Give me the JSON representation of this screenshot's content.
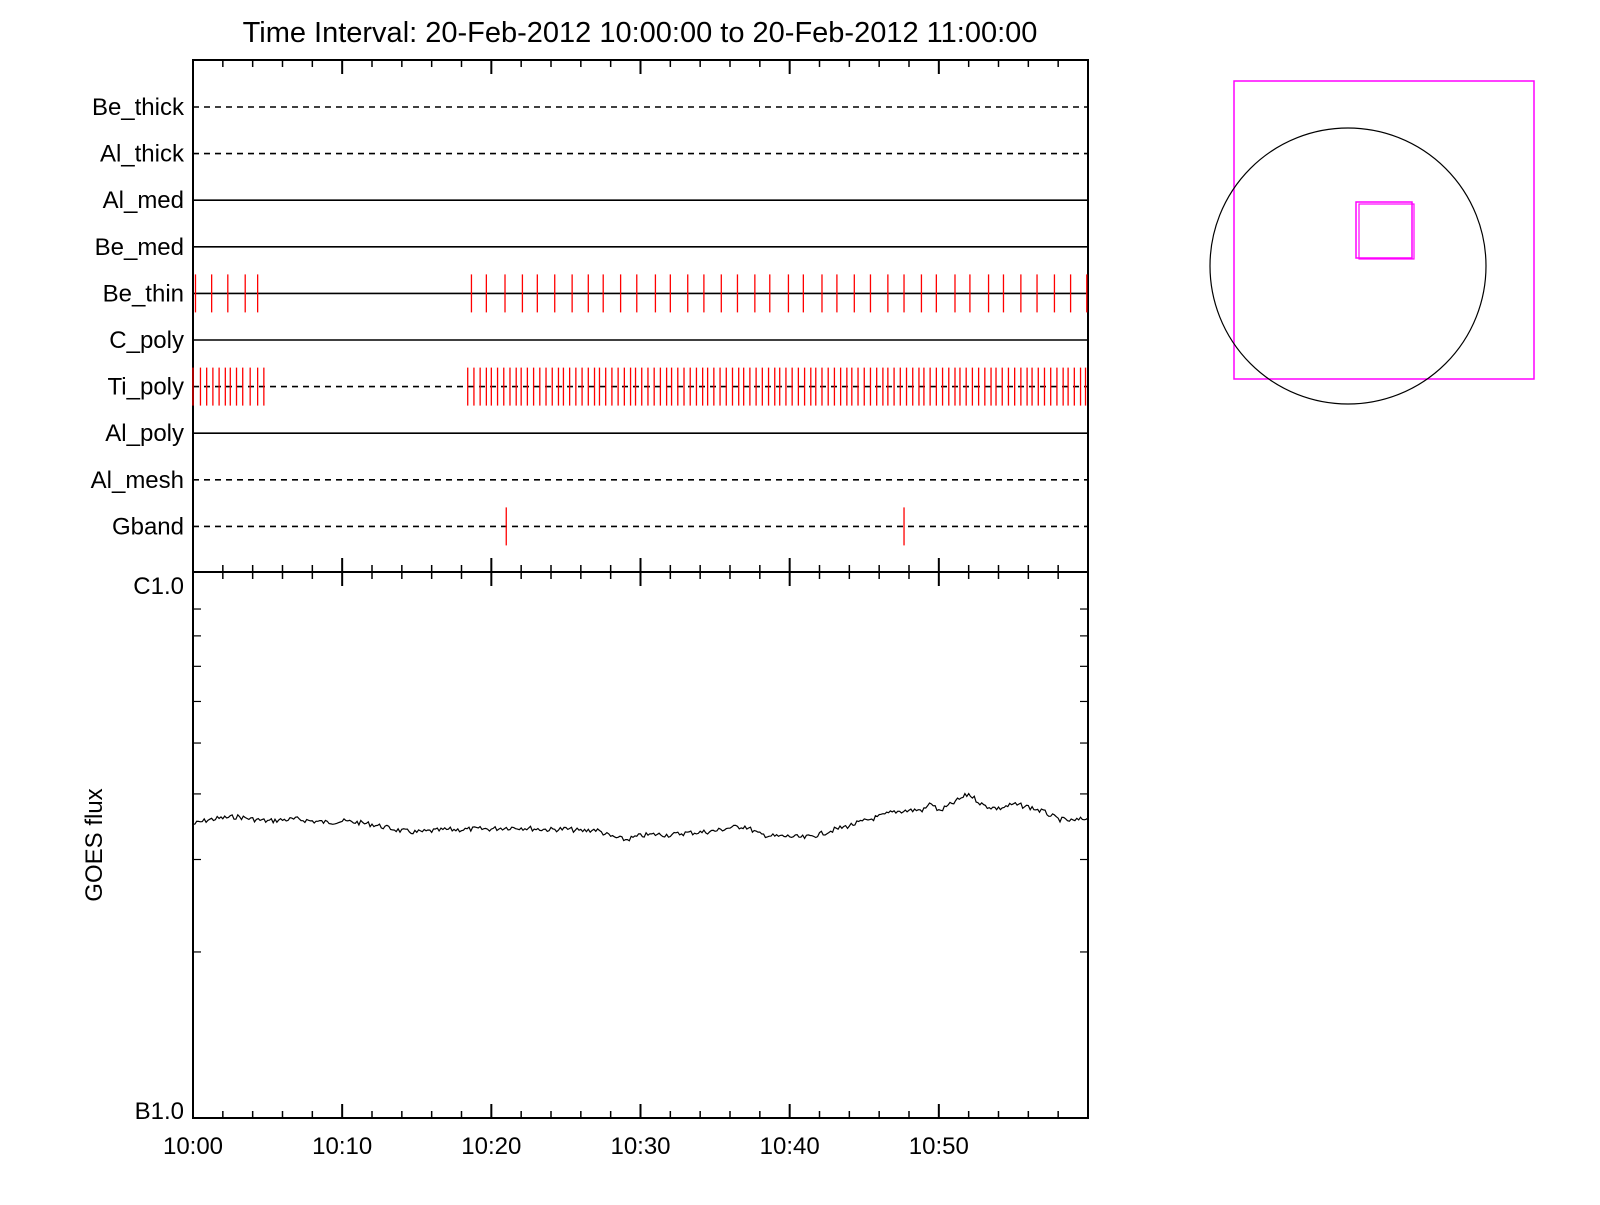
{
  "title": "Time Interval: 20-Feb-2012 10:00:00 to 20-Feb-2012 11:00:00",
  "colors": {
    "axes": "#000000",
    "marks": "#ff0000",
    "fov": "#ff00ff",
    "sun": "#000000"
  },
  "chart_data": [
    {
      "type": "timeline",
      "time_range": [
        "10:00",
        "11:00"
      ],
      "channels": [
        {
          "name": "Be_thick",
          "style": "dashed",
          "marks": []
        },
        {
          "name": "Al_thick",
          "style": "dashed",
          "marks": []
        },
        {
          "name": "Al_med",
          "style": "solid",
          "marks": []
        },
        {
          "name": "Be_med",
          "style": "solid",
          "marks": []
        },
        {
          "name": "Be_thin",
          "style": "solid",
          "marks": [
            "10:00:10",
            "10:01:15",
            "10:02:20",
            "10:03:30",
            "10:04:20",
            "10:18:40",
            "10:19:40",
            "10:20:55",
            "10:22:05",
            "10:23:05",
            "10:24:15",
            "10:25:25",
            "10:26:30",
            "10:27:30",
            "10:28:40",
            "10:29:45",
            "10:31:00",
            "10:32:00",
            "10:33:10",
            "10:34:15",
            "10:35:25",
            "10:36:30",
            "10:37:40",
            "10:38:40",
            "10:39:55",
            "10:40:55",
            "10:42:10",
            "10:43:10",
            "10:44:20",
            "10:45:25",
            "10:46:35",
            "10:47:40",
            "10:48:50",
            "10:49:50",
            "10:51:05",
            "10:52:05",
            "10:53:20",
            "10:54:20",
            "10:55:30",
            "10:56:35",
            "10:57:45",
            "10:58:50",
            "10:59:55"
          ]
        },
        {
          "name": "C_poly",
          "style": "solid",
          "marks": []
        },
        {
          "name": "Ti_poly",
          "style": "dashed",
          "marks": [
            "10:00:00",
            "10:00:30",
            "10:00:55",
            "10:01:20",
            "10:01:45",
            "10:02:10",
            "10:02:30",
            "10:02:55",
            "10:03:20",
            "10:03:50",
            "10:04:20",
            "10:04:45",
            "10:18:25",
            "10:18:50",
            "10:19:15",
            "10:19:40",
            "10:20:00",
            "10:20:25",
            "10:20:50",
            "10:21:15",
            "10:21:40",
            "10:22:00",
            "10:22:25",
            "10:22:50",
            "10:23:15",
            "10:23:40",
            "10:24:05",
            "10:24:30",
            "10:24:50",
            "10:25:15",
            "10:25:40",
            "10:26:05",
            "10:26:30",
            "10:26:55",
            "10:27:15",
            "10:27:40",
            "10:28:05",
            "10:28:30",
            "10:28:55",
            "10:29:20",
            "10:29:40",
            "10:30:05",
            "10:30:30",
            "10:30:55",
            "10:31:20",
            "10:31:45",
            "10:32:05",
            "10:32:30",
            "10:32:55",
            "10:33:20",
            "10:33:45",
            "10:34:10",
            "10:34:30",
            "10:34:55",
            "10:35:20",
            "10:35:45",
            "10:36:10",
            "10:36:35",
            "10:36:55",
            "10:37:20",
            "10:37:45",
            "10:38:10",
            "10:38:35",
            "10:39:00",
            "10:39:20",
            "10:39:45",
            "10:40:10",
            "10:40:35",
            "10:41:00",
            "10:41:25",
            "10:41:45",
            "10:42:10",
            "10:42:35",
            "10:43:00",
            "10:43:25",
            "10:43:50",
            "10:44:10",
            "10:44:35",
            "10:45:00",
            "10:45:25",
            "10:45:50",
            "10:46:15",
            "10:46:35",
            "10:47:00",
            "10:47:25",
            "10:47:50",
            "10:48:15",
            "10:48:40",
            "10:49:00",
            "10:49:25",
            "10:49:50",
            "10:50:15",
            "10:50:40",
            "10:51:05",
            "10:51:25",
            "10:51:50",
            "10:52:15",
            "10:52:40",
            "10:53:05",
            "10:53:30",
            "10:53:50",
            "10:54:15",
            "10:54:40",
            "10:55:05",
            "10:55:30",
            "10:55:55",
            "10:56:15",
            "10:56:40",
            "10:57:05",
            "10:57:30",
            "10:57:55",
            "10:58:20",
            "10:58:40",
            "10:59:05",
            "10:59:30",
            "10:59:50"
          ]
        },
        {
          "name": "Al_poly",
          "style": "solid",
          "marks": []
        },
        {
          "name": "Al_mesh",
          "style": "dashed",
          "marks": []
        },
        {
          "name": "Gband",
          "style": "dashed",
          "marks": [
            "10:21:00",
            "10:47:40"
          ]
        }
      ]
    },
    {
      "type": "line",
      "ylabel": "GOES flux",
      "y_scale": "log",
      "ylim": [
        "B1.0",
        "C1.0"
      ],
      "ytick_labels": [
        "C1.0",
        "B1.0"
      ],
      "xtick_labels": [
        "10:00",
        "10:10",
        "10:20",
        "10:30",
        "10:40",
        "10:50"
      ],
      "xlim": [
        "10:00",
        "11:00"
      ],
      "series": [
        {
          "x": [
            "10:00",
            "10:01",
            "10:02",
            "10:03",
            "10:04",
            "10:05",
            "10:06",
            "10:07",
            "10:08",
            "10:09",
            "10:10",
            "10:11",
            "10:12",
            "10:13",
            "10:14",
            "10:15",
            "10:16",
            "10:17",
            "10:18",
            "10:19",
            "10:20",
            "10:21",
            "10:22",
            "10:23",
            "10:24",
            "10:25",
            "10:26",
            "10:27",
            "10:28",
            "10:29",
            "10:30",
            "10:31",
            "10:32",
            "10:33",
            "10:34",
            "10:35",
            "10:36",
            "10:37",
            "10:38",
            "10:39",
            "10:40",
            "10:41",
            "10:42",
            "10:43",
            "10:44",
            "10:45",
            "10:46",
            "10:47",
            "10:48",
            "10:49",
            "10:49:30",
            "10:50",
            "10:51",
            "10:52",
            "10:53",
            "10:54",
            "10:55",
            "10:56",
            "10:57",
            "10:58",
            "10:59",
            "11:00"
          ],
          "y": [
            3.5e-07,
            3.57e-07,
            3.6e-07,
            3.62e-07,
            3.58e-07,
            3.55e-07,
            3.57e-07,
            3.58e-07,
            3.55e-07,
            3.53e-07,
            3.55e-07,
            3.53e-07,
            3.5e-07,
            3.45e-07,
            3.4e-07,
            3.38e-07,
            3.4e-07,
            3.42e-07,
            3.42e-07,
            3.43e-07,
            3.43e-07,
            3.45e-07,
            3.45e-07,
            3.43e-07,
            3.42e-07,
            3.43e-07,
            3.4e-07,
            3.42e-07,
            3.32e-07,
            3.27e-07,
            3.33e-07,
            3.35e-07,
            3.34e-07,
            3.37e-07,
            3.38e-07,
            3.4e-07,
            3.45e-07,
            3.47e-07,
            3.35e-07,
            3.32e-07,
            3.32e-07,
            3.3e-07,
            3.35e-07,
            3.42e-07,
            3.48e-07,
            3.55e-07,
            3.62e-07,
            3.7e-07,
            3.72e-07,
            3.73e-07,
            3.85e-07,
            3.7e-07,
            3.85e-07,
            4e-07,
            3.8e-07,
            3.75e-07,
            3.82e-07,
            3.78e-07,
            3.7e-07,
            3.58e-07,
            3.55e-07,
            3.6e-07
          ]
        }
      ]
    }
  ]
}
